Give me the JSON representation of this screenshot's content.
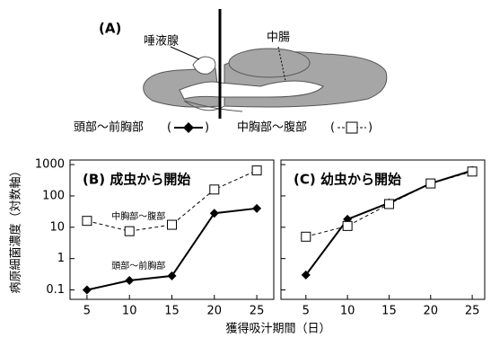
{
  "diagram": {
    "label": "(A)",
    "parts": [
      "唾液腺",
      "中腸"
    ],
    "legend": [
      {
        "text": "頭部～前胸部",
        "open": "(",
        "close": ")"
      },
      {
        "text": "中胸部～腹部",
        "open": "(",
        "close": ")"
      }
    ]
  },
  "figure": {
    "xlabel": "獲得吸汁期間（日）",
    "ylabel": "病原細菌濃度（対数軸）"
  },
  "chart_data": [
    {
      "type": "line",
      "title": "(B) 成虫から開始",
      "y_scale": "log",
      "series_labels": true,
      "xlim": [
        3,
        27
      ],
      "ylim": [
        0.05,
        1400
      ],
      "xticks": [
        5,
        10,
        15,
        20,
        25
      ],
      "yticks": [
        0.1,
        1,
        10,
        100,
        1000
      ],
      "x": [
        5,
        10,
        15,
        20,
        25
      ],
      "series": [
        {
          "name": "頭部～前胸部",
          "color": "#000000",
          "line_style": "solid",
          "marker": "diamond",
          "values": [
            0.1,
            0.2,
            0.28,
            28,
            40
          ]
        },
        {
          "name": "中胸部～腹部",
          "color": "#000000",
          "line_style": "dashed",
          "marker": "square",
          "values": [
            16,
            7.5,
            12,
            160,
            650
          ]
        }
      ]
    },
    {
      "type": "line",
      "title": "(C) 幼虫から開始",
      "y_scale": "log",
      "series_labels": false,
      "xlim": [
        2,
        26.5
      ],
      "ylim": [
        0.05,
        1400
      ],
      "xticks": [
        5,
        10,
        15,
        20,
        25
      ],
      "yticks": [
        0.1,
        1,
        10,
        100,
        1000
      ],
      "x": [
        5,
        10,
        15,
        20,
        25
      ],
      "series": [
        {
          "name": "頭部～前胸部",
          "color": "#000000",
          "line_style": "solid",
          "marker": "diamond",
          "values": [
            0.3,
            18,
            60,
            250,
            650
          ]
        },
        {
          "name": "中胸部～腹部",
          "color": "#000000",
          "line_style": "dashed",
          "marker": "square",
          "values": [
            5,
            11,
            55,
            250,
            600
          ]
        }
      ]
    }
  ]
}
